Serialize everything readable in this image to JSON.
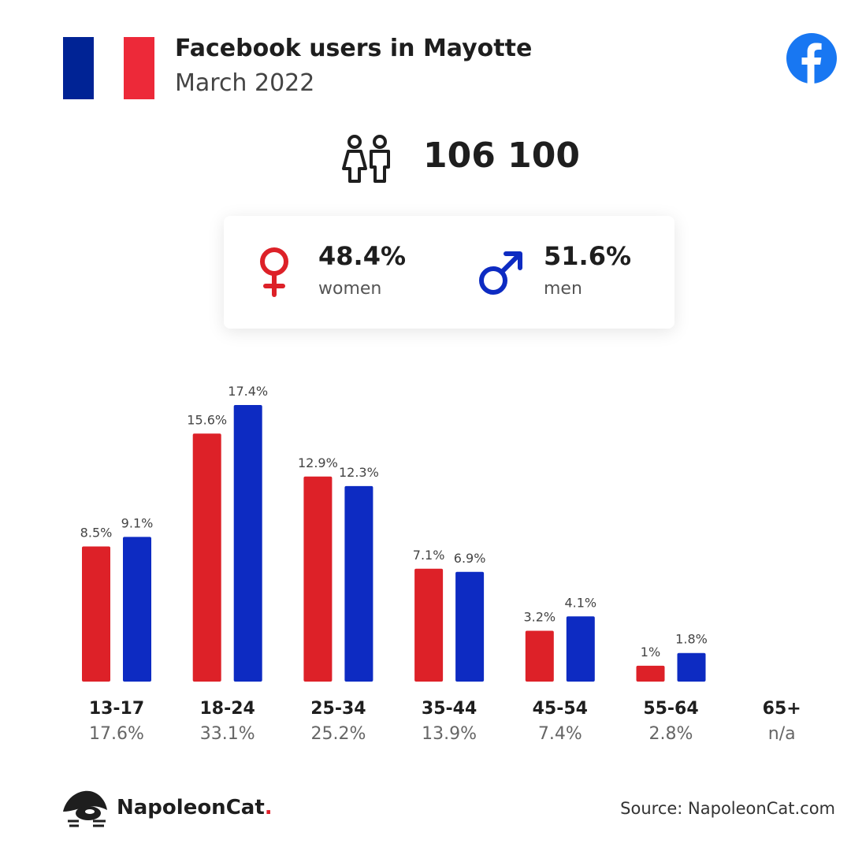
{
  "header": {
    "title": "Facebook users in Mayotte",
    "subtitle": "March 2022",
    "flag_colors": [
      "#002395",
      "#ffffff",
      "#ed2939"
    ],
    "brand_icon": "facebook-icon"
  },
  "total": {
    "icon": "people-icon",
    "value": "106 100"
  },
  "gender": {
    "women": {
      "icon": "female-symbol-icon",
      "pct": "48.4%",
      "label": "women",
      "color": "#dd2128"
    },
    "men": {
      "icon": "male-symbol-icon",
      "pct": "51.6%",
      "label": "men",
      "color": "#0d2bc2"
    }
  },
  "chart_data": {
    "type": "bar",
    "categories": [
      "13-17",
      "18-24",
      "25-34",
      "35-44",
      "45-54",
      "55-64",
      "65+"
    ],
    "category_totals": [
      "17.6%",
      "33.1%",
      "25.2%",
      "13.9%",
      "7.4%",
      "2.8%",
      "n/a"
    ],
    "series": [
      {
        "values": [
          8.5,
          15.6,
          12.9,
          7.1,
          3.2,
          1,
          null
        ],
        "labels": [
          "8.5%",
          "15.6%",
          "12.9%",
          "7.1%",
          "3.2%",
          "1%",
          ""
        ],
        "color": "#dd2128"
      },
      {
        "values": [
          9.1,
          17.4,
          12.3,
          6.9,
          4.1,
          1.8,
          null
        ],
        "labels": [
          "9.1%",
          "17.4%",
          "12.3%",
          "6.9%",
          "4.1%",
          "1.8%",
          ""
        ],
        "color": "#0d2bc2"
      }
    ],
    "ylim": [
      0,
      17.4
    ],
    "grid": false,
    "legend": "none"
  },
  "footer": {
    "brand": "NapoleonCat",
    "brand_dot": ".",
    "brand_icon": "napoleoncat-logo-icon",
    "source": "Source: NapoleonCat.com"
  }
}
